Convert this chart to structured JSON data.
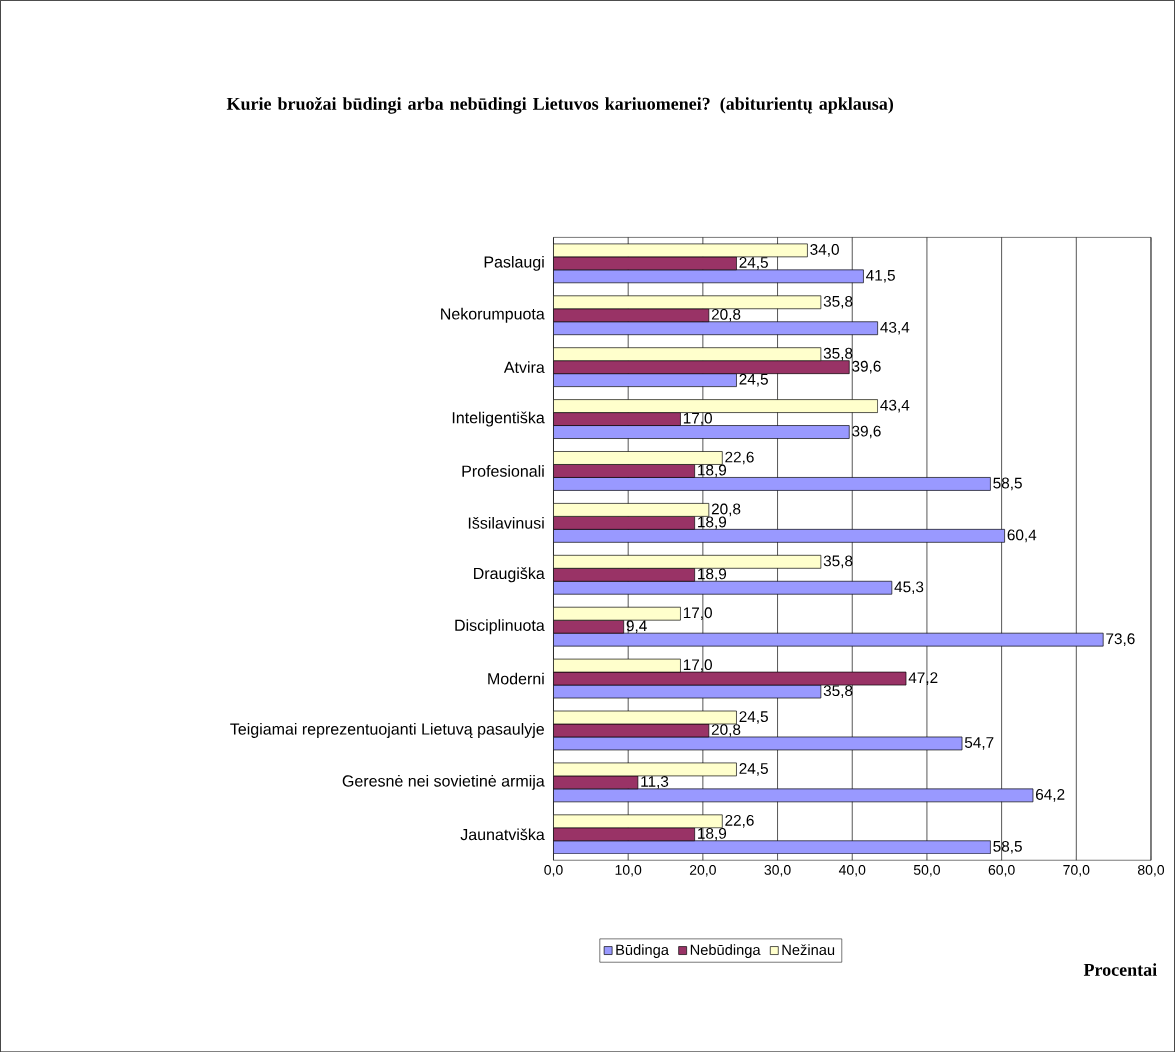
{
  "chart_data": {
    "type": "bar",
    "orientation": "horizontal",
    "title": "Kurie bruožai būdingi arba nebūdingi Lietuvos kariuomenei? (abiturientų apklausa)",
    "xlabel": "Procentai",
    "categories": [
      "Paslaugi",
      "Nekorumpuota",
      "Atvira",
      "Inteligentiška",
      "Profesionali",
      "Išsilavinusi",
      "Draugiška",
      "Disciplinuota",
      "Moderni",
      "Teigiamai reprezentuojanti Lietuvą pasaulyje",
      "Geresnė nei sovietinė armija",
      "Jaunatviška"
    ],
    "series": [
      {
        "name": "Būdinga",
        "color": "#9999ff",
        "values": [
          41.5,
          43.4,
          24.5,
          39.6,
          58.5,
          60.4,
          45.3,
          73.6,
          35.8,
          54.7,
          64.2,
          58.5
        ],
        "value_labels": [
          "41,5",
          "43,4",
          "24,5",
          "39,6",
          "58,5",
          "60,4",
          "45,3",
          "73,6",
          "35,8",
          "54,7",
          "64,2",
          "58,5"
        ]
      },
      {
        "name": "Nebūdinga",
        "color": "#993366",
        "values": [
          24.5,
          20.8,
          39.6,
          17.0,
          18.9,
          18.9,
          18.9,
          9.4,
          47.2,
          20.8,
          11.3,
          18.9
        ],
        "value_labels": [
          "24,5",
          "20,8",
          "39,6",
          "17,0",
          "18,9",
          "18,9",
          "18,9",
          "9,4",
          "47,2",
          "20,8",
          "11,3",
          "18,9"
        ]
      },
      {
        "name": "Nežinau",
        "color": "#ffffcc",
        "values": [
          34.0,
          35.8,
          35.8,
          43.4,
          22.6,
          20.8,
          35.8,
          17.0,
          17.0,
          24.5,
          24.5,
          22.6
        ],
        "value_labels": [
          "34,0",
          "35,8",
          "35,8",
          "43,4",
          "22,6",
          "20,8",
          "35,8",
          "17,0",
          "17,0",
          "24,5",
          "24,5",
          "22,6"
        ]
      }
    ],
    "xlim": [
      0,
      80
    ],
    "xticks": [
      {
        "value": 0,
        "label": "0,0"
      },
      {
        "value": 10,
        "label": "10,0"
      },
      {
        "value": 20,
        "label": "20,0"
      },
      {
        "value": 30,
        "label": "30,0"
      },
      {
        "value": 40,
        "label": "40,0"
      },
      {
        "value": 50,
        "label": "50,0"
      },
      {
        "value": 60,
        "label": "60,0"
      },
      {
        "value": 70,
        "label": "70,0"
      },
      {
        "value": 80,
        "label": "80,0"
      }
    ],
    "grid": "x",
    "legend": "bottom"
  }
}
